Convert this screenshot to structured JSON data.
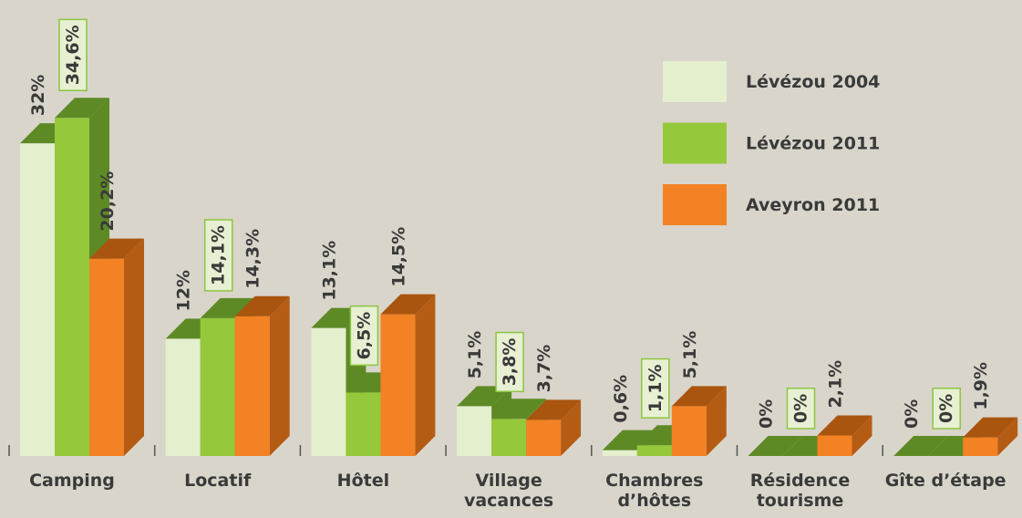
{
  "chart_data": {
    "type": "bar3d",
    "categories": [
      "Camping",
      "Locatif",
      "Hôtel",
      "Village vacances",
      "Chambres d’hôtes",
      "Résidence tourisme",
      "Gîte d’étape"
    ],
    "series": [
      {
        "name": "Lévézou 2004",
        "color": "#e4efce",
        "top_color": "#5e8a26",
        "side_color": "#5e8a26",
        "values": [
          32,
          12,
          13.1,
          5.1,
          0.6,
          0,
          0
        ],
        "value_labels": [
          "32%",
          "12%",
          "13,1%",
          "5,1%",
          "0,6%",
          "0%",
          "0%"
        ]
      },
      {
        "name": "Lévézou 2011",
        "color": "#96c83c",
        "top_color": "#5e8a26",
        "side_color": "#5e8a26",
        "boxed": true,
        "values": [
          34.6,
          14.1,
          6.5,
          3.8,
          1.1,
          0,
          0
        ],
        "value_labels": [
          "34,6%",
          "14,1%",
          "6,5%",
          "3,8%",
          "1,1%",
          "0%",
          "0%"
        ]
      },
      {
        "name": "Aveyron 2011",
        "color": "#f28223",
        "top_color": "#a9550f",
        "side_color": "#b55c14",
        "values": [
          20.2,
          14.3,
          14.5,
          3.7,
          5.1,
          2.1,
          1.9
        ],
        "value_labels": [
          "20,2%",
          "14,3%",
          "14,5%",
          "3,7%",
          "5,1%",
          "2,1%",
          "1,9%"
        ]
      }
    ],
    "ylim": [
      0,
      35
    ]
  }
}
